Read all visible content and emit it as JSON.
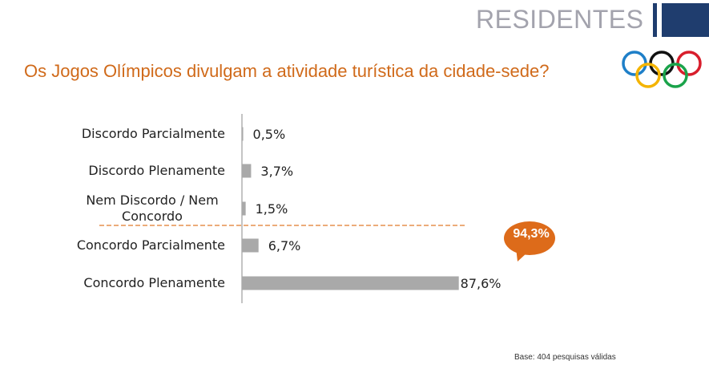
{
  "header": {
    "title": "RESIDENTES"
  },
  "question": "Os Jogos Olímpicos divulgam a atividade turística da cidade-sede?",
  "callout": "94,3%",
  "footnote": "Base: 404 pesquisas válidas",
  "colors": {
    "bar": "#a9a9a9",
    "title": "#d06a1a",
    "callout": "#dd6b1a",
    "header_accent": "#1f3d6e",
    "separator": "#e07a2a"
  },
  "rings": [
    "#1e7fc8",
    "#f4b400",
    "#111111",
    "#1aa34a",
    "#d81e2c"
  ],
  "chart_data": {
    "type": "bar",
    "orientation": "horizontal",
    "categories": [
      [
        "Discordo Parcialmente"
      ],
      [
        "Discordo Plenamente"
      ],
      [
        "Nem Discordo / Nem",
        "Concordo"
      ],
      [
        "Concordo Parcialmente"
      ],
      [
        "Concordo Plenamente"
      ]
    ],
    "values": [
      0.5,
      3.7,
      1.5,
      6.7,
      87.6
    ],
    "value_labels": [
      "0,5%",
      "3,7%",
      "1,5%",
      "6,7%",
      "87,6%"
    ],
    "xlim": [
      0,
      100
    ],
    "grid": false,
    "separator_after_index": 2
  }
}
